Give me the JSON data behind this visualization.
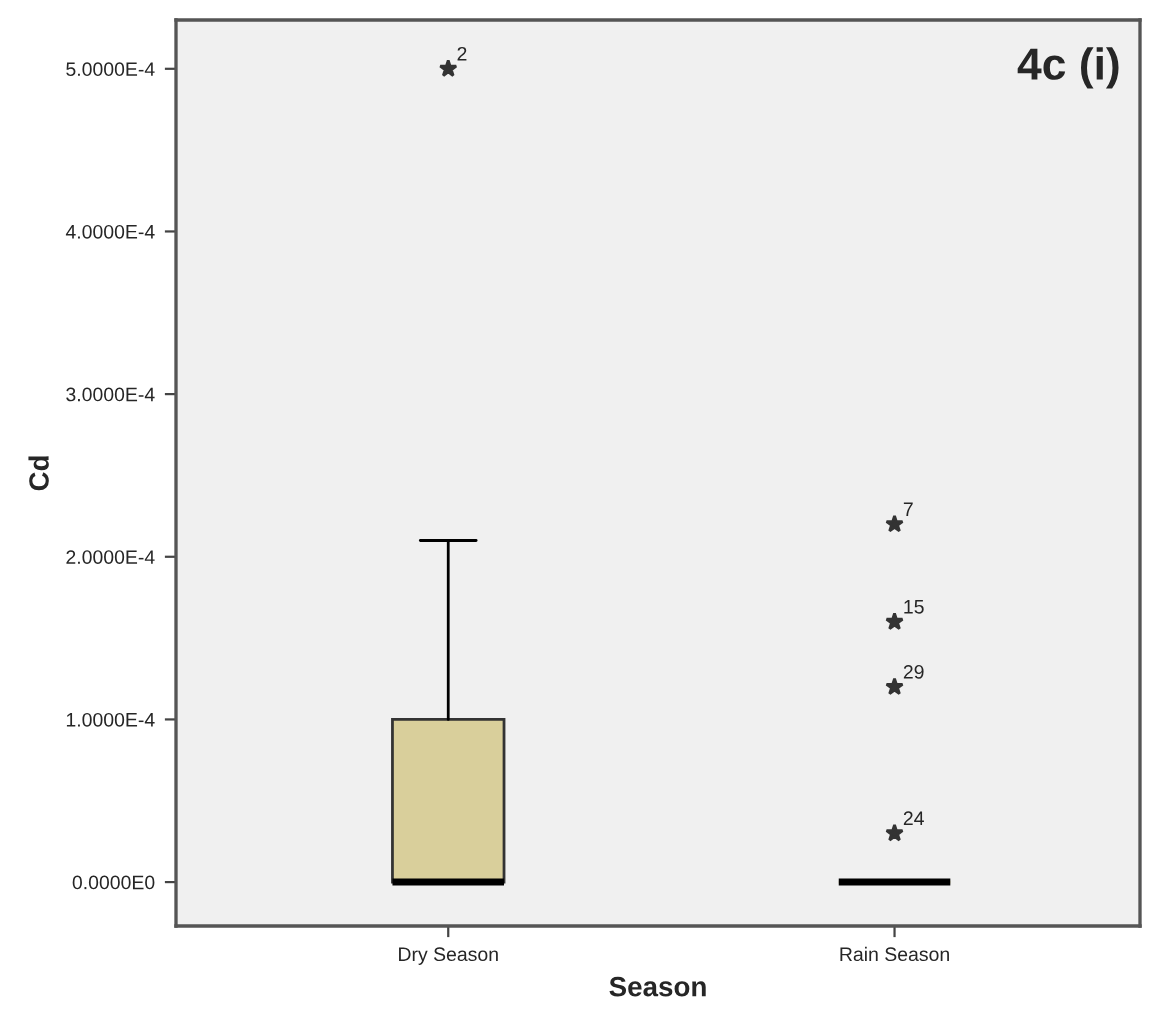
{
  "chart_data": {
    "type": "box",
    "xlabel": "Season",
    "ylabel": "Cd",
    "categories": [
      "Dry Season",
      "Rain Season"
    ],
    "boxes": [
      {
        "low": 0,
        "q1": 0,
        "median": 0,
        "q3": 0.0001,
        "high": 0.00021,
        "outliers": [
          0.0005
        ]
      },
      {
        "low": 0,
        "q1": 0,
        "median": 0,
        "q3": 0,
        "high": 0,
        "outliers": [
          0.00022,
          0.00016,
          0.00012,
          3e-05
        ]
      }
    ],
    "colors": [
      "#d9cf9b",
      "#d9cf9b"
    ],
    "marker": "star",
    "grid": false,
    "legend": false,
    "ylim": [
      -2.7e-05,
      0.00053
    ],
    "yticks": [
      {
        "value": 0,
        "label": "0.0000E0"
      },
      {
        "value": 0.0001,
        "label": "1.0000E-4"
      },
      {
        "value": 0.0002,
        "label": "2.0000E-4"
      },
      {
        "value": 0.0003,
        "label": "3.0000E-4"
      },
      {
        "value": 0.0004,
        "label": "4.0000E-4"
      },
      {
        "value": 0.0005,
        "label": "5.0000E-4"
      }
    ],
    "annotations": [
      "2",
      "7",
      "15",
      "29",
      "24",
      "4c (i)"
    ]
  }
}
